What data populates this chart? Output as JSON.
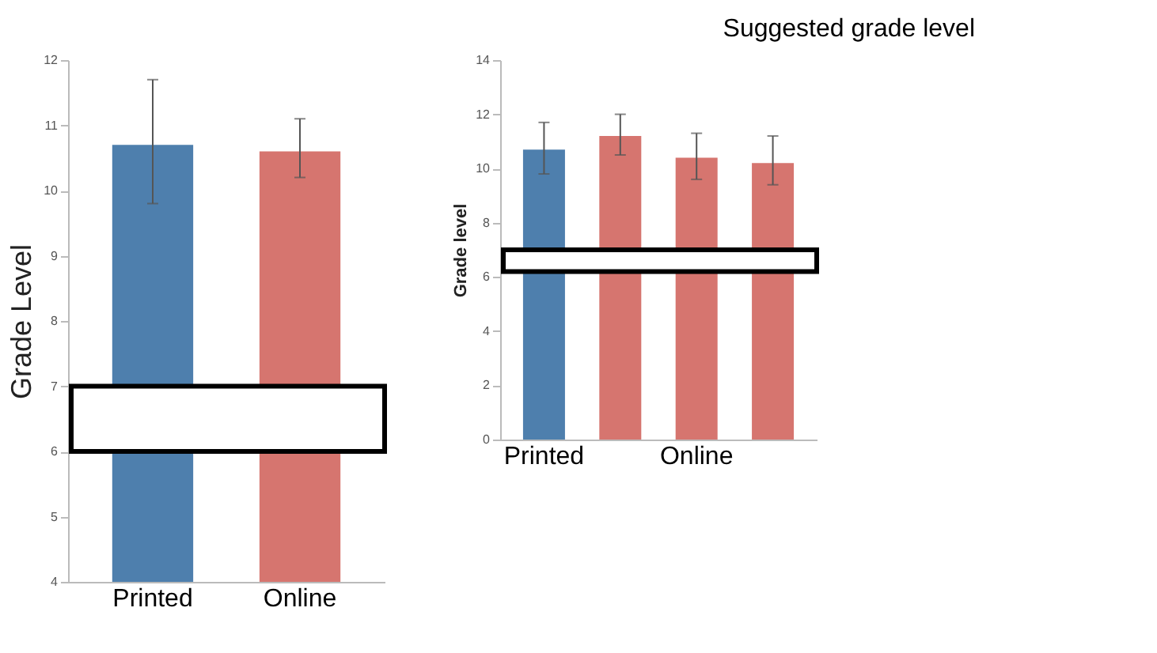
{
  "chart_data": [
    {
      "type": "bar",
      "ylabel": "Grade Level",
      "categories": [
        "Printed",
        "Online"
      ],
      "values": [
        10.7,
        10.6
      ],
      "colors": [
        "#4e7fad",
        "#d6756f"
      ],
      "errors": [
        [
          9.8,
          11.7
        ],
        [
          10.2,
          11.1
        ]
      ],
      "ylim": [
        4,
        12
      ],
      "yticks": [
        4,
        5,
        6,
        7,
        8,
        9,
        10,
        11,
        12
      ],
      "grid": false,
      "bands": [
        {
          "axis": "y",
          "from": 6,
          "to": 7,
          "color": "#000000"
        }
      ]
    },
    {
      "type": "bar",
      "ylabel": "Grade level",
      "categories": [
        "Printed",
        null,
        "Online",
        null
      ],
      "values": [
        10.7,
        11.2,
        10.4,
        10.2
      ],
      "colors": [
        "#4e7fad",
        "#d6756f",
        "#d6756f",
        "#d6756f"
      ],
      "errors": [
        [
          9.8,
          11.7
        ],
        [
          10.5,
          12.0
        ],
        [
          9.6,
          11.3
        ],
        [
          9.4,
          11.2
        ]
      ],
      "ylim": [
        0,
        14
      ],
      "yticks": [
        0,
        2,
        4,
        6,
        8,
        10,
        12,
        14
      ],
      "grid": false,
      "bands": [
        {
          "axis": "y",
          "from": 6.2,
          "to": 7.0,
          "color": "#000000",
          "label": "Suggested grade level"
        }
      ]
    }
  ]
}
